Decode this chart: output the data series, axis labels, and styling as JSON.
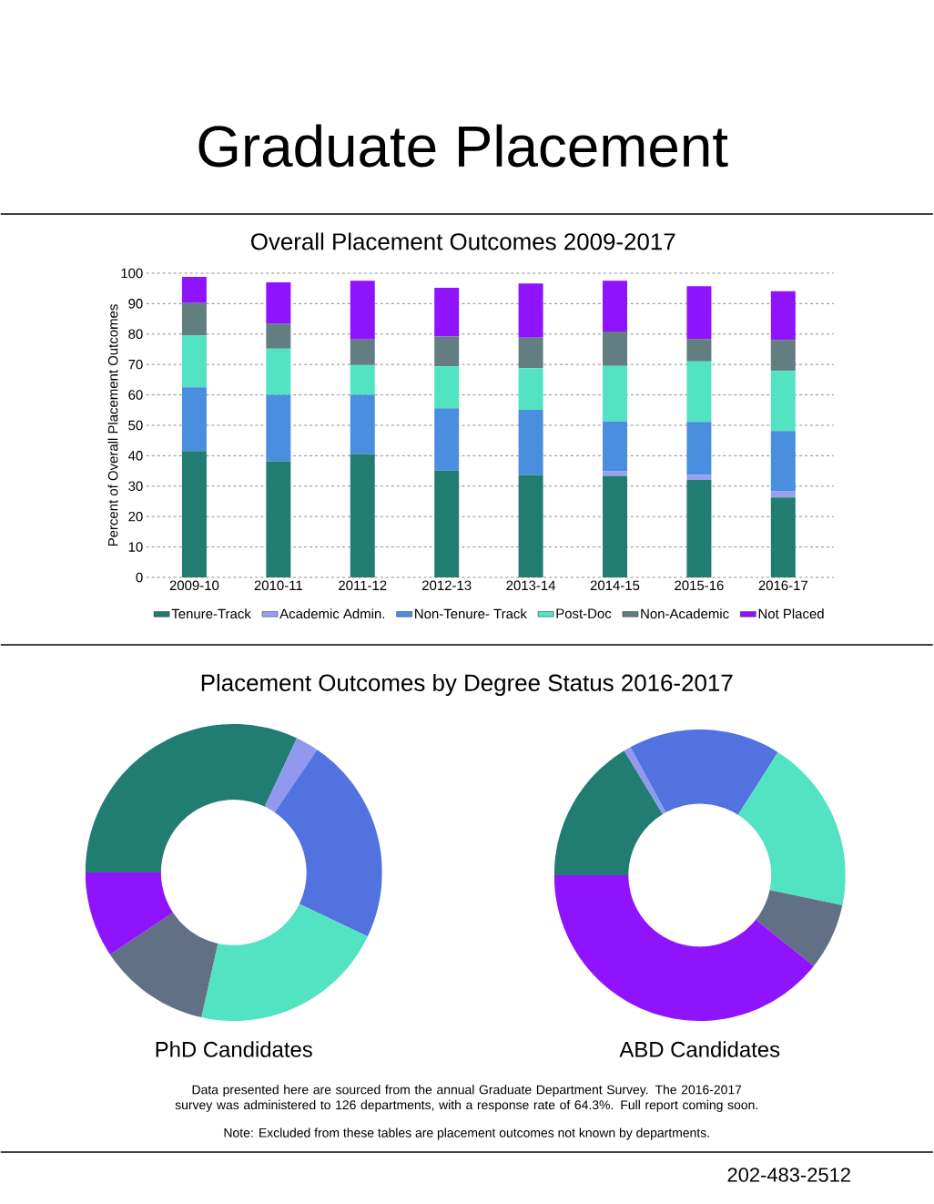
{
  "chart_data": [
    {
      "type": "bar",
      "title": "Graduate Placement",
      "subtitle": "Overall Placement Outcomes 2009-2017",
      "ylabel": "Percent of Overall Placement Outcomes",
      "categories": [
        "2009-10",
        "2010-11",
        "2011-12",
        "2012-13",
        "2013-14",
        "2014-15",
        "2015-16",
        "2016-17"
      ],
      "stacked": true,
      "ylim": [
        0,
        100
      ],
      "yticks": [
        0,
        10,
        20,
        30,
        40,
        50,
        60,
        70,
        80,
        90,
        100
      ],
      "grid": "y",
      "legend": "bottom",
      "series": [
        {
          "name": "Tenure-Track",
          "color": "#217d72",
          "values": [
            41.5,
            38.2,
            40.6,
            35.2,
            33.7,
            33.4,
            32.0,
            26.3
          ]
        },
        {
          "name": "Academic Admin.",
          "color": "#9a9ff0",
          "values": [
            0,
            0,
            0,
            0,
            0,
            1.5,
            1.7,
            2.1
          ]
        },
        {
          "name": "Non-Tenure- Track",
          "color": "#4a8ee0",
          "values": [
            21.0,
            21.8,
            19.4,
            20.4,
            21.4,
            16.4,
            17.4,
            19.7
          ]
        },
        {
          "name": "Post-Doc",
          "color": "#52e3c2",
          "values": [
            17.0,
            15.2,
            9.8,
            13.8,
            13.7,
            18.2,
            19.9,
            19.8
          ]
        },
        {
          "name": "Non-Academic",
          "color": "#627e80",
          "values": [
            10.7,
            8.3,
            8.4,
            9.8,
            10.0,
            11.3,
            7.4,
            10.2
          ]
        },
        {
          "name": "Not Placed",
          "color": "#9013fe",
          "values": [
            8.6,
            13.5,
            19.3,
            16.0,
            17.8,
            16.7,
            17.3,
            16.0
          ]
        }
      ]
    },
    {
      "type": "donut",
      "title": "Placement Outcomes by Degree Status 2016-2017",
      "xlabel": "PhD Candidates",
      "categories": [
        null,
        null,
        null,
        null,
        null,
        null
      ],
      "values": [
        32.0,
        2.5,
        22.6,
        21.4,
        12.2,
        9.3
      ],
      "colors": [
        "#217d72",
        "#9199ef",
        "#5272e0",
        "#52e3c2",
        "#627086",
        "#9013fe"
      ]
    },
    {
      "type": "donut",
      "xlabel": "ABD Candidates",
      "categories": [
        null,
        null,
        null,
        null,
        null,
        null
      ],
      "values": [
        16.3,
        0.8,
        16.9,
        19.3,
        7.4,
        39.3
      ],
      "colors": [
        "#217d72",
        "#9199ef",
        "#5272e0",
        "#52e3c2",
        "#627086",
        "#9013fe"
      ],
      "annotations": [
        "Data presented here are sourced from the annual Graduate Department Survey. The 2016-2017 survey was administered to 126 departments, with a response rate of 64.3%. Full report coming soon.",
        "Note: Excluded from these tables are placement outcomes not known by departments.",
        "202-483-2512"
      ]
    }
  ]
}
